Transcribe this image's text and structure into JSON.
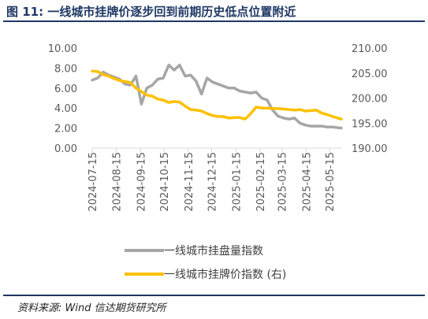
{
  "title": "图 11:  一线城市挂牌价逐步回到前期历史低点位置附近",
  "source": "资料来源:    Wind  信达期货研究所",
  "colors": {
    "listing_count": "#a6a6a6",
    "listing_price": "#ffc000",
    "title": "#1f3864",
    "axis_text": "#595959"
  },
  "chart_data": {
    "type": "line",
    "title": "",
    "xlabel": "",
    "x_tick_labels": [
      "2024-07-15",
      "2024-08-15",
      "2024-09-15",
      "2024-10-15",
      "2024-11-15",
      "2024-12-15",
      "2025-01-15",
      "2025-02-15",
      "2025-03-15",
      "2025-04-15",
      "2025-05-15"
    ],
    "y_left": {
      "ylim": [
        0,
        10
      ],
      "ticks": [
        "0.00",
        "2.00",
        "4.00",
        "6.00",
        "8.00",
        "10.00"
      ]
    },
    "y_right": {
      "ylim": [
        190,
        210
      ],
      "ticks": [
        "190.00",
        "195.00",
        "200.00",
        "205.00",
        "210.00"
      ]
    },
    "grid": false,
    "legend_position": "bottom",
    "x_start": "2024-07-15",
    "x_end": "2025-05-30",
    "series": [
      {
        "name": "一线城市挂盘量指数",
        "axis": "left",
        "x": [
          "2024-07-15",
          "2024-07-22",
          "2024-07-29",
          "2024-08-05",
          "2024-08-12",
          "2024-08-19",
          "2024-08-26",
          "2024-09-02",
          "2024-09-09",
          "2024-09-16",
          "2024-09-23",
          "2024-09-30",
          "2024-10-07",
          "2024-10-14",
          "2024-10-21",
          "2024-10-28",
          "2024-11-04",
          "2024-11-11",
          "2024-11-18",
          "2024-11-25",
          "2024-12-02",
          "2024-12-09",
          "2024-12-16",
          "2024-12-23",
          "2024-12-30",
          "2025-01-06",
          "2025-01-13",
          "2025-01-20",
          "2025-01-27",
          "2025-02-03",
          "2025-02-10",
          "2025-02-17",
          "2025-02-24",
          "2025-03-03",
          "2025-03-10",
          "2025-03-17",
          "2025-03-24",
          "2025-03-31",
          "2025-04-07",
          "2025-04-14",
          "2025-04-21",
          "2025-04-28",
          "2025-05-05",
          "2025-05-12",
          "2025-05-19",
          "2025-05-30"
        ],
        "values": [
          6.8,
          7.0,
          7.6,
          7.3,
          7.1,
          6.9,
          6.4,
          6.3,
          7.2,
          4.4,
          6.0,
          6.3,
          6.9,
          7.0,
          8.3,
          7.8,
          8.3,
          7.2,
          7.3,
          6.7,
          5.4,
          7.0,
          6.6,
          6.4,
          6.2,
          6.0,
          6.0,
          5.7,
          5.6,
          5.5,
          5.6,
          5.0,
          4.8,
          3.8,
          3.2,
          3.0,
          2.9,
          3.0,
          2.5,
          2.3,
          2.2,
          2.2,
          2.2,
          2.1,
          2.1,
          2.0
        ]
      },
      {
        "name": "一线城市挂牌价指数 (右)",
        "axis": "right",
        "x": [
          "2024-07-15",
          "2024-07-22",
          "2024-07-29",
          "2024-08-05",
          "2024-08-12",
          "2024-08-19",
          "2024-08-26",
          "2024-09-02",
          "2024-09-09",
          "2024-09-16",
          "2024-09-23",
          "2024-09-30",
          "2024-10-07",
          "2024-10-14",
          "2024-10-21",
          "2024-10-28",
          "2024-11-04",
          "2024-11-11",
          "2024-11-18",
          "2024-11-25",
          "2024-12-02",
          "2024-12-09",
          "2024-12-16",
          "2024-12-23",
          "2024-12-30",
          "2025-01-06",
          "2025-01-13",
          "2025-01-20",
          "2025-01-27",
          "2025-02-03",
          "2025-02-10",
          "2025-02-17",
          "2025-02-24",
          "2025-03-03",
          "2025-03-10",
          "2025-03-17",
          "2025-03-24",
          "2025-03-31",
          "2025-04-07",
          "2025-04-14",
          "2025-04-21",
          "2025-04-28",
          "2025-05-05",
          "2025-05-12",
          "2025-05-19",
          "2025-05-30"
        ],
        "values": [
          205.4,
          205.3,
          204.7,
          204.4,
          203.9,
          203.5,
          203.3,
          203.1,
          202.0,
          201.3,
          200.6,
          200.4,
          199.8,
          199.6,
          199.1,
          199.3,
          199.2,
          198.4,
          197.7,
          197.6,
          197.4,
          196.9,
          196.5,
          196.3,
          196.3,
          196.0,
          196.1,
          196.1,
          195.8,
          196.9,
          198.2,
          198.0,
          198.0,
          197.9,
          197.9,
          197.8,
          197.7,
          197.6,
          197.7,
          197.4,
          197.5,
          197.6,
          197.0,
          196.7,
          196.3,
          195.8
        ]
      }
    ]
  }
}
